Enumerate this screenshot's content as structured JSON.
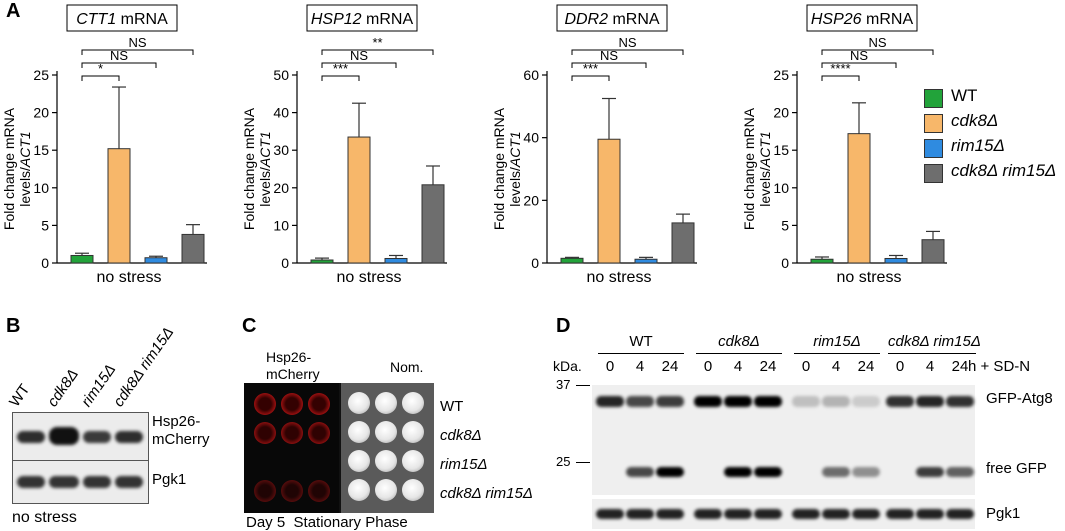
{
  "colors": {
    "wt": "#22a33a",
    "cdk8": "#f7b76a",
    "rim15": "#2f8be0",
    "double": "#6e6e6e"
  },
  "panel_a": {
    "letter": "A",
    "ylabel_line1": "Fold change mRNA",
    "ylabel_line2_prefix": "levels/",
    "ylabel_line2_italic": "ACT1",
    "xlabel": "no stress",
    "legend": [
      {
        "label": "WT",
        "italic": false,
        "color_key": "wt"
      },
      {
        "label": "cdk8Δ",
        "italic": true,
        "color_key": "cdk8"
      },
      {
        "label": "rim15Δ",
        "italic": true,
        "color_key": "rim15"
      },
      {
        "label": "cdk8Δ rim15Δ",
        "italic": true,
        "color_key": "double"
      }
    ]
  },
  "chart_data": [
    {
      "type": "bar",
      "title_gene": "CTT1",
      "title_suffix": " mRNA",
      "categories": [
        "WT",
        "cdk8Δ",
        "rim15Δ",
        "cdk8Δ rim15Δ"
      ],
      "values": [
        1.0,
        15.2,
        0.7,
        3.8
      ],
      "errors": [
        0.3,
        8.2,
        0.2,
        1.3
      ],
      "ylim": [
        0,
        25
      ],
      "yticks": [
        0,
        5,
        10,
        15,
        20,
        25
      ],
      "significance": [
        {
          "label": "*",
          "from": 0,
          "to": 1
        },
        {
          "label": "NS",
          "from": 0,
          "to": 2
        },
        {
          "label": "NS",
          "from": 0,
          "to": 3
        }
      ]
    },
    {
      "type": "bar",
      "title_gene": "HSP12",
      "title_suffix": " mRNA",
      "categories": [
        "WT",
        "cdk8Δ",
        "rim15Δ",
        "cdk8Δ rim15Δ"
      ],
      "values": [
        0.8,
        33.5,
        1.2,
        20.8
      ],
      "errors": [
        0.5,
        9.0,
        0.8,
        5.0
      ],
      "ylim": [
        0,
        50
      ],
      "yticks": [
        0,
        10,
        20,
        30,
        40,
        50
      ],
      "significance": [
        {
          "label": "***",
          "from": 0,
          "to": 1
        },
        {
          "label": "NS",
          "from": 0,
          "to": 2
        },
        {
          "label": "**",
          "from": 0,
          "to": 3
        }
      ]
    },
    {
      "type": "bar",
      "title_gene": "DDR2",
      "title_suffix": " mRNA",
      "categories": [
        "WT",
        "cdk8Δ",
        "rim15Δ",
        "cdk8Δ rim15Δ"
      ],
      "values": [
        1.5,
        39.5,
        1.2,
        12.8
      ],
      "errors": [
        0.3,
        13.0,
        0.6,
        2.8
      ],
      "ylim": [
        0,
        60
      ],
      "yticks": [
        0,
        20,
        40,
        60
      ],
      "significance": [
        {
          "label": "***",
          "from": 0,
          "to": 1
        },
        {
          "label": "NS",
          "from": 0,
          "to": 2
        },
        {
          "label": "NS",
          "from": 0,
          "to": 3
        }
      ]
    },
    {
      "type": "bar",
      "title_gene": "HSP26",
      "title_suffix": " mRNA",
      "categories": [
        "WT",
        "cdk8Δ",
        "rim15Δ",
        "cdk8Δ rim15Δ"
      ],
      "values": [
        0.5,
        17.2,
        0.6,
        3.1
      ],
      "errors": [
        0.3,
        4.1,
        0.4,
        1.1
      ],
      "ylim": [
        0,
        25
      ],
      "yticks": [
        0,
        5,
        10,
        15,
        20,
        25
      ],
      "significance": [
        {
          "label": "****",
          "from": 0,
          "to": 1
        },
        {
          "label": "NS",
          "from": 0,
          "to": 2
        },
        {
          "label": "NS",
          "from": 0,
          "to": 3
        }
      ]
    }
  ],
  "panel_b": {
    "letter": "B",
    "lanes": [
      "WT",
      "cdk8Δ",
      "rim15Δ",
      "cdk8Δ rim15Δ"
    ],
    "lane_italic": [
      false,
      true,
      true,
      true
    ],
    "band1_line1": "Hsp26-",
    "band1_line2": "mCherry",
    "band2_label": "Pgk1",
    "footer": "no stress"
  },
  "panel_c": {
    "letter": "C",
    "col1_line1": "Hsp26-",
    "col1_line2": "mCherry",
    "col2_label": "Nom.",
    "rows": [
      "WT",
      "cdk8Δ",
      "rim15Δ",
      "cdk8Δ rim15Δ"
    ],
    "row_italic": [
      false,
      true,
      true,
      true
    ],
    "footer": "Day 5  Stationary Phase"
  },
  "panel_d": {
    "letter": "D",
    "groups": [
      "WT",
      "cdk8Δ",
      "rim15Δ",
      "cdk8Δ rim15Δ"
    ],
    "group_italic": [
      false,
      true,
      true,
      true
    ],
    "kda_label": "kDa.",
    "timepoints": [
      "0",
      "4",
      "24"
    ],
    "time_suffix": "h + SD-N",
    "markers": [
      "37",
      "25"
    ],
    "band_labels": [
      "GFP-Atg8",
      "free GFP"
    ],
    "pgk_label": "Pgk1"
  }
}
